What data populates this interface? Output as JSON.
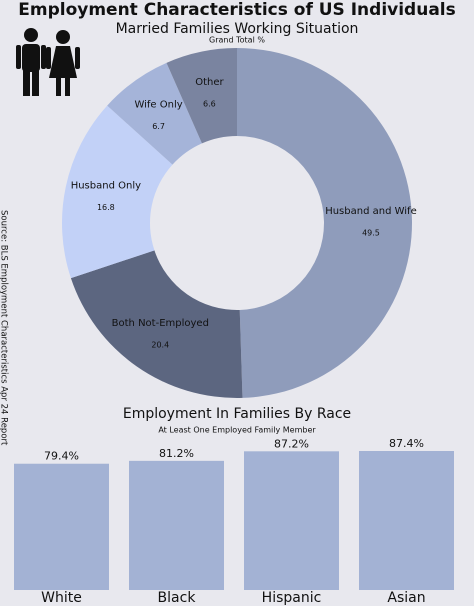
{
  "title": "Employment Characteristics of US Individuals",
  "source": "Source: BLS Employment Characteristics Apr 24 Report",
  "chart_data": [
    {
      "type": "donut",
      "title": "Married Families Working Situation",
      "subtitle": "Grand Total %",
      "categories": [
        "Husband and Wife",
        "Both Not-Employed",
        "Husband Only",
        "Wife Only",
        "Other"
      ],
      "values": [
        49.5,
        20.4,
        16.8,
        6.7,
        6.6
      ],
      "colors": [
        "#8f9cbb",
        "#5c6680",
        "#c2d1f7",
        "#a5b4d9",
        "#7a84a0"
      ]
    },
    {
      "type": "bar",
      "title": "Employment In Families By Race",
      "subtitle": "At Least One Employed Family Member",
      "categories": [
        "White",
        "Black",
        "Hispanic",
        "Asian"
      ],
      "values": [
        79.4,
        81.2,
        87.2,
        87.4
      ],
      "value_labels": [
        "79.4%",
        "81.2%",
        "87.2%",
        "87.4%"
      ],
      "color": "#a3b2d4"
    }
  ]
}
